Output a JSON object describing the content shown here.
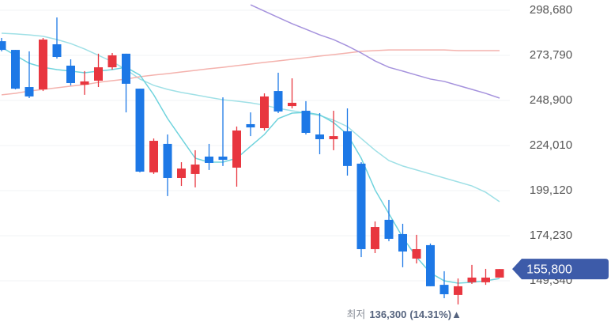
{
  "chart_data": {
    "type": "candlestick",
    "ylim": [
      120500,
      304350
    ],
    "yticks": [
      {
        "value": 298680,
        "label": "298,680"
      },
      {
        "value": 273790,
        "label": "273,790"
      },
      {
        "value": 248900,
        "label": "248,900"
      },
      {
        "value": 224010,
        "label": "224,010"
      },
      {
        "value": 199120,
        "label": "199,120"
      },
      {
        "value": 174230,
        "label": "174,230"
      },
      {
        "value": 149340,
        "label": "149,340"
      }
    ],
    "grid": true,
    "up_color": "#e8363f",
    "down_color": "#1d78e6",
    "open": [
      281600,
      276800,
      256300,
      255000,
      279900,
      268100,
      257600,
      259800,
      267200,
      274700,
      255400,
      209200,
      224900,
      206100,
      208300,
      217900,
      217900,
      211800,
      235800,
      233600,
      254100,
      245800,
      243200,
      230100,
      227500,
      231900,
      214000,
      166800,
      183000,
      175100,
      161600,
      169000,
      147100,
      141500,
      148500,
      148500,
      151100
    ],
    "high": [
      283400,
      276800,
      276000,
      283400,
      294700,
      271600,
      265100,
      274700,
      275100,
      274700,
      255400,
      227900,
      230100,
      214800,
      221400,
      224900,
      250600,
      234500,
      242300,
      252800,
      264200,
      261100,
      248500,
      241900,
      243200,
      244500,
      214800,
      182100,
      193900,
      180800,
      174700,
      169900,
      154600,
      150600,
      158100,
      155900,
      155800
    ],
    "low": [
      276000,
      255000,
      250200,
      254100,
      272000,
      257200,
      252000,
      256300,
      265900,
      242300,
      209200,
      208300,
      196100,
      201700,
      200900,
      210500,
      212700,
      201300,
      229200,
      232300,
      241900,
      244500,
      230100,
      219200,
      221400,
      207400,
      162400,
      164600,
      171200,
      156800,
      158900,
      146300,
      139700,
      136300,
      147600,
      147100,
      151100
    ],
    "close": [
      276800,
      255400,
      251100,
      282500,
      272900,
      258500,
      259400,
      267200,
      273800,
      258100,
      209600,
      226600,
      206100,
      211300,
      213500,
      214400,
      216100,
      232300,
      234000,
      251100,
      242800,
      247600,
      231000,
      227500,
      229200,
      212700,
      166800,
      179000,
      172500,
      165500,
      166800,
      146300,
      141900,
      146300,
      151100,
      151100,
      155800
    ],
    "lines": [
      {
        "color": "#9fe0e6",
        "values": [
          286000,
          285600,
          285100,
          284300,
          282500,
          280300,
          277300,
          273800,
          270300,
          265900,
          260700,
          257200,
          255000,
          253300,
          252000,
          250600,
          249300,
          248500,
          247600,
          246300,
          244500,
          243200,
          241900,
          240600,
          238000,
          234500,
          227900,
          221400,
          215700,
          212700,
          210500,
          208300,
          206100,
          203900,
          201700,
          198200,
          193000
        ]
      },
      {
        "color": "#f4b2ad",
        "values": [
          252000,
          252800,
          254100,
          255000,
          255900,
          256800,
          257600,
          258900,
          259800,
          260700,
          262000,
          262900,
          263700,
          264600,
          265500,
          266400,
          267200,
          268100,
          269000,
          269900,
          270700,
          271600,
          272500,
          273400,
          274200,
          275100,
          276000,
          276400,
          276800,
          276800,
          276800,
          276800,
          276800,
          276400,
          276400,
          276400,
          276400
        ]
      },
      {
        "color": "#a592dd",
        "values": [
          null,
          null,
          null,
          null,
          null,
          null,
          null,
          null,
          null,
          null,
          null,
          null,
          null,
          null,
          null,
          null,
          null,
          null,
          301700,
          298200,
          294700,
          291300,
          288200,
          285100,
          282500,
          279000,
          275100,
          270700,
          267200,
          265100,
          262900,
          260700,
          259400,
          257200,
          255000,
          252800,
          250200
        ]
      },
      {
        "color": "#6fd3dd",
        "values": [
          278200,
          273800,
          269400,
          267200,
          265900,
          265100,
          264200,
          265100,
          265900,
          267200,
          262900,
          252000,
          238900,
          227900,
          217000,
          214800,
          214800,
          217000,
          223600,
          230100,
          238900,
          241900,
          242300,
          241000,
          236700,
          230100,
          217000,
          199500,
          186400,
          173300,
          162400,
          153700,
          149300,
          148000,
          148500,
          149300,
          150600
        ]
      }
    ],
    "last_price": {
      "value": 155800,
      "label": "155,800",
      "color": "#3d5ba9"
    },
    "low_annotation": {
      "prefix": "최저",
      "value": 136300,
      "label": "136,300",
      "change": "(14.31%)▲"
    }
  }
}
